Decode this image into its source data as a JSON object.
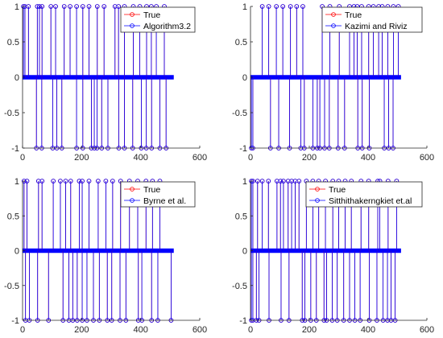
{
  "colors": {
    "true_series": "#ff0000",
    "estimate_series": "#0000ff",
    "axis": "#262626",
    "legend_border": "#262626"
  },
  "chart_data": [
    {
      "type": "stem",
      "xlim": [
        0,
        600
      ],
      "ylim": [
        -1,
        1
      ],
      "xticks": [
        0,
        200,
        400,
        600
      ],
      "yticks": [
        -1,
        -0.5,
        0,
        0.5,
        1
      ],
      "legend": [
        "True",
        "Algorithm3.2"
      ],
      "legend_position": "top-right",
      "n": 512,
      "series": [
        {
          "name": "True",
          "positive": [
            3,
            8,
            20,
            50,
            57,
            66,
            96,
            112,
            141,
            161,
            183,
            204,
            225,
            253,
            276,
            313,
            325,
            345,
            375,
            397,
            420,
            436,
            453,
            480
          ],
          "negative": [
            47,
            65,
            102,
            116,
            133,
            183,
            204,
            233,
            243,
            252,
            268,
            289,
            326,
            345,
            373,
            402,
            419,
            437,
            465,
            486
          ]
        },
        {
          "name": "Algorithm3.2",
          "positive": [
            3,
            8,
            20,
            50,
            57,
            66,
            96,
            112,
            141,
            161,
            183,
            204,
            225,
            253,
            276,
            313,
            325,
            345,
            375,
            397,
            420,
            436,
            453,
            480
          ],
          "negative": [
            47,
            65,
            102,
            116,
            133,
            183,
            204,
            233,
            243,
            252,
            268,
            289,
            326,
            345,
            373,
            402,
            419,
            437,
            465,
            486
          ]
        }
      ]
    },
    {
      "type": "stem",
      "xlim": [
        0,
        600
      ],
      "ylim": [
        -1,
        1
      ],
      "xticks": [
        0,
        200,
        400,
        600
      ],
      "yticks": [
        -1,
        -0.5,
        0,
        0.5,
        1
      ],
      "legend": [
        "True",
        "Kazimi and Riviz"
      ],
      "legend_position": "top-right",
      "n": 512,
      "series": [
        {
          "name": "True",
          "positive": [
            40,
            62,
            88,
            110,
            136,
            157,
            178,
            244,
            270,
            302,
            337,
            352,
            363,
            378,
            402,
            418,
            436,
            448,
            467,
            486,
            503
          ],
          "negative": [
            3,
            8,
            68,
            96,
            133,
            171,
            183,
            212,
            227,
            236,
            252,
            268,
            298,
            320,
            365,
            380,
            404,
            455,
            470,
            485
          ]
        },
        {
          "name": "Kazimi and Riviz",
          "positive": [
            40,
            62,
            88,
            110,
            136,
            157,
            178,
            244,
            270,
            302,
            337,
            352,
            363,
            378,
            402,
            418,
            436,
            448,
            467,
            486,
            503
          ],
          "negative": [
            3,
            8,
            68,
            96,
            133,
            171,
            183,
            212,
            227,
            236,
            252,
            268,
            298,
            320,
            365,
            380,
            404,
            455,
            470,
            485
          ]
        }
      ]
    },
    {
      "type": "stem",
      "xlim": [
        0,
        600
      ],
      "ylim": [
        -1,
        1
      ],
      "xticks": [
        0,
        200,
        400,
        600
      ],
      "yticks": [
        -1,
        -0.5,
        0,
        0.5,
        1
      ],
      "legend": [
        "True",
        "Byrne et al."
      ],
      "legend_position": "top-right",
      "n": 512,
      "series": [
        {
          "name": "True",
          "positive": [
            5,
            15,
            54,
            66,
            104,
            128,
            146,
            163,
            192,
            202,
            225,
            256,
            282,
            305,
            332,
            362,
            390,
            418,
            440,
            465
          ],
          "negative": [
            10,
            23,
            51,
            88,
            137,
            157,
            170,
            185,
            202,
            218,
            240,
            260,
            287,
            302,
            330,
            350,
            392,
            404,
            437,
            458,
            503
          ]
        },
        {
          "name": "Byrne et al.",
          "positive": [
            5,
            15,
            54,
            66,
            104,
            128,
            146,
            163,
            192,
            202,
            225,
            256,
            282,
            305,
            332,
            362,
            390,
            418,
            440,
            465
          ],
          "negative": [
            10,
            23,
            51,
            88,
            137,
            157,
            170,
            185,
            202,
            218,
            240,
            260,
            287,
            302,
            330,
            350,
            392,
            404,
            437,
            458,
            503
          ]
        }
      ]
    },
    {
      "type": "stem",
      "xlim": [
        0,
        600
      ],
      "ylim": [
        -1,
        1
      ],
      "xticks": [
        0,
        200,
        400,
        600
      ],
      "yticks": [
        -1,
        -0.5,
        0,
        0.5,
        1
      ],
      "legend": [
        "True",
        "Sitthithakerngkiet et.al"
      ],
      "legend_position": "top-right",
      "n": 512,
      "series": [
        {
          "name": "True",
          "positive": [
            3,
            8,
            24,
            40,
            61,
            90,
            102,
            112,
            128,
            140,
            152,
            165,
            190,
            212,
            232,
            255,
            280,
            300,
            322,
            343,
            376,
            402,
            433,
            440,
            468,
            497
          ],
          "negative": [
            3,
            8,
            20,
            29,
            63,
            104,
            131,
            176,
            185,
            205,
            224,
            250,
            259,
            278,
            295,
            317,
            337,
            355,
            373,
            404,
            430,
            451,
            466,
            478,
            492
          ]
        },
        {
          "name": "Sitthithakerngkiet et.al",
          "positive": [
            3,
            8,
            24,
            40,
            61,
            90,
            102,
            112,
            128,
            140,
            152,
            165,
            190,
            212,
            232,
            255,
            280,
            300,
            322,
            343,
            376,
            402,
            433,
            440,
            468,
            497
          ],
          "negative": [
            3,
            8,
            20,
            29,
            63,
            104,
            131,
            176,
            185,
            205,
            224,
            250,
            259,
            278,
            295,
            317,
            337,
            355,
            373,
            404,
            430,
            451,
            466,
            478,
            492
          ]
        }
      ]
    }
  ]
}
